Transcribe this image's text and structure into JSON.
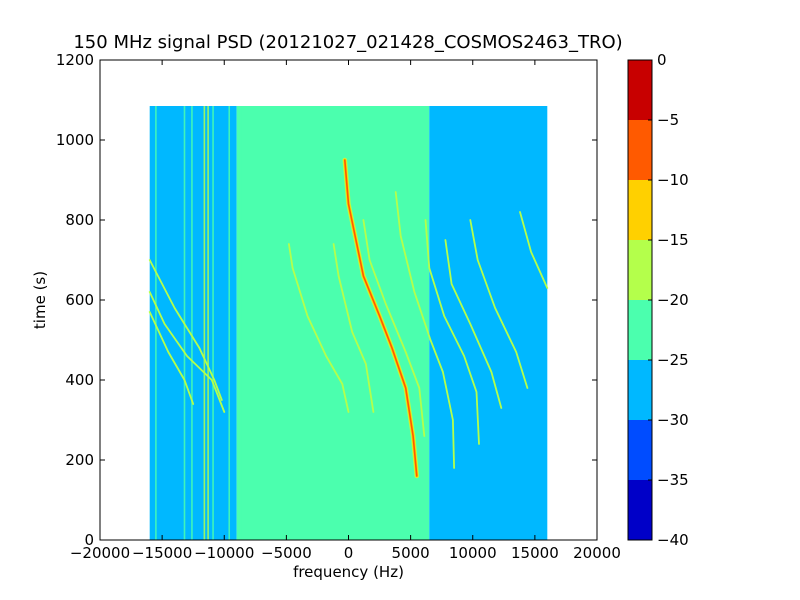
{
  "chart_data": {
    "type": "heatmap",
    "title": "150 MHz signal PSD (20121027_021428_COSMOS2463_TRO)",
    "xlabel": "frequency (Hz)",
    "ylabel": "time (s)",
    "xlim": [
      -20000,
      20000
    ],
    "ylim": [
      0,
      1200
    ],
    "x_ticks": [
      -20000,
      -15000,
      -10000,
      -5000,
      0,
      5000,
      10000,
      15000,
      20000
    ],
    "y_ticks": [
      0,
      200,
      400,
      600,
      800,
      1000,
      1200
    ],
    "data_extent": {
      "x": [
        -16000,
        16000
      ],
      "y": [
        0,
        1085
      ]
    },
    "background_levels": [
      {
        "x_from": -16000,
        "x_to": -9000,
        "value": -27.5
      },
      {
        "x_from": -9000,
        "x_to": 6500,
        "value": -22.5
      },
      {
        "x_from": 6500,
        "x_to": 16000,
        "value": -27.5
      }
    ],
    "traces": [
      {
        "name": "",
        "peak": -7.5,
        "points": [
          [
            -300,
            950
          ],
          [
            0,
            840
          ],
          [
            1200,
            660
          ],
          [
            2500,
            560
          ],
          [
            3500,
            480
          ],
          [
            4600,
            380
          ],
          [
            5200,
            260
          ],
          [
            5500,
            160
          ]
        ]
      },
      {
        "name": "",
        "peak": -17.5,
        "points": [
          [
            3800,
            870
          ],
          [
            4200,
            760
          ],
          [
            5300,
            620
          ],
          [
            6600,
            500
          ],
          [
            7600,
            420
          ],
          [
            8400,
            300
          ],
          [
            8500,
            180
          ]
        ]
      },
      {
        "name": "",
        "peak": -17.5,
        "points": [
          [
            -4800,
            740
          ],
          [
            -4500,
            680
          ],
          [
            -3300,
            560
          ],
          [
            -1800,
            460
          ],
          [
            -500,
            390
          ],
          [
            0,
            320
          ]
        ]
      },
      {
        "name": "",
        "peak": -17.5,
        "points": [
          [
            -1200,
            740
          ],
          [
            -800,
            660
          ],
          [
            300,
            520
          ],
          [
            1400,
            440
          ],
          [
            2000,
            320
          ]
        ]
      },
      {
        "name": "",
        "peak": -17.5,
        "points": [
          [
            1200,
            800
          ],
          [
            1700,
            700
          ],
          [
            3000,
            590
          ],
          [
            4600,
            470
          ],
          [
            5700,
            380
          ],
          [
            6100,
            260
          ]
        ]
      },
      {
        "name": "",
        "peak": -17.5,
        "points": [
          [
            6200,
            800
          ],
          [
            6500,
            680
          ],
          [
            7700,
            560
          ],
          [
            9300,
            460
          ],
          [
            10300,
            370
          ],
          [
            10500,
            240
          ]
        ]
      },
      {
        "name": "",
        "peak": -17.5,
        "points": [
          [
            7800,
            750
          ],
          [
            8300,
            640
          ],
          [
            9800,
            540
          ],
          [
            11500,
            420
          ],
          [
            12300,
            330
          ]
        ]
      },
      {
        "name": "",
        "peak": -17.5,
        "points": [
          [
            9800,
            800
          ],
          [
            10400,
            700
          ],
          [
            11800,
            580
          ],
          [
            13500,
            470
          ],
          [
            14400,
            380
          ]
        ]
      },
      {
        "name": "",
        "peak": -17.5,
        "points": [
          [
            13800,
            820
          ],
          [
            14700,
            720
          ],
          [
            16000,
            630
          ]
        ]
      },
      {
        "name": "",
        "peak": -17.5,
        "points": [
          [
            -16000,
            620
          ],
          [
            -14800,
            540
          ],
          [
            -13000,
            460
          ],
          [
            -11000,
            400
          ],
          [
            -10000,
            320
          ]
        ]
      },
      {
        "name": "",
        "peak": -17.5,
        "points": [
          [
            -16000,
            700
          ],
          [
            -14000,
            580
          ],
          [
            -12000,
            480
          ],
          [
            -10800,
            400
          ],
          [
            -10200,
            350
          ]
        ]
      },
      {
        "name": "",
        "peak": -17.5,
        "points": [
          [
            -16000,
            570
          ],
          [
            -14500,
            470
          ],
          [
            -13200,
            400
          ],
          [
            -12500,
            340
          ]
        ]
      }
    ],
    "vertical_lines": [
      {
        "x": -15500,
        "peak": -22.5
      },
      {
        "x": -13200,
        "peak": -22.5
      },
      {
        "x": -12600,
        "peak": -22.5
      },
      {
        "x": -11600,
        "peak": -17.5
      },
      {
        "x": -11300,
        "peak": -17.5
      },
      {
        "x": -10900,
        "peak": -22.5
      },
      {
        "x": -9600,
        "peak": -22.5
      },
      {
        "x": -8700,
        "peak": -22.5
      }
    ],
    "colorbar": {
      "vmin": -40,
      "vmax": 0,
      "ticks": [
        0,
        -5,
        -10,
        -15,
        -20,
        -25,
        -30,
        -35,
        -40
      ],
      "levels": [
        {
          "from": -40,
          "to": -35,
          "color": "#0000c8"
        },
        {
          "from": -35,
          "to": -30,
          "color": "#004cff"
        },
        {
          "from": -30,
          "to": -25,
          "color": "#00b8ff"
        },
        {
          "from": -25,
          "to": -20,
          "color": "#4bffae"
        },
        {
          "from": -20,
          "to": -15,
          "color": "#b4ff4b"
        },
        {
          "from": -15,
          "to": -10,
          "color": "#ffd000"
        },
        {
          "from": -10,
          "to": -5,
          "color": "#ff5a00"
        },
        {
          "from": -5,
          "to": 0,
          "color": "#c80000"
        }
      ]
    }
  }
}
